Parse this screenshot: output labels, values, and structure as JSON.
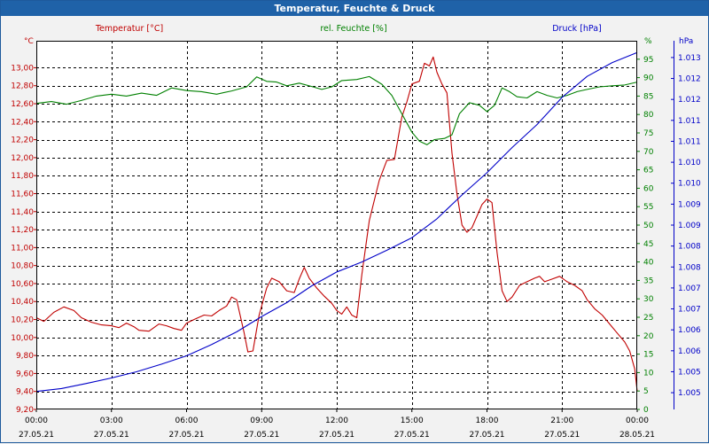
{
  "window": {
    "title": "Temperatur, Feuchte & Druck"
  },
  "colors": {
    "temperature": "#c00000",
    "humidity": "#008000",
    "pressure": "#0000c8",
    "grid": "#000000",
    "plot_bg": "#ffffff"
  },
  "chart_data": {
    "type": "line",
    "title": "Temperatur, Feuchte & Druck",
    "x_axis": {
      "range_hours": [
        0,
        24
      ],
      "ticks": [
        {
          "h": 0,
          "time": "00:00",
          "date": "27.05.21"
        },
        {
          "h": 3,
          "time": "03:00",
          "date": "27.05.21"
        },
        {
          "h": 6,
          "time": "06:00",
          "date": "27.05.21"
        },
        {
          "h": 9,
          "time": "09:00",
          "date": "27.05.21"
        },
        {
          "h": 12,
          "time": "12:00",
          "date": "27.05.21"
        },
        {
          "h": 15,
          "time": "15:00",
          "date": "27.05.21"
        },
        {
          "h": 18,
          "time": "18:00",
          "date": "27.05.21"
        },
        {
          "h": 21,
          "time": "21:00",
          "date": "27.05.21"
        },
        {
          "h": 24,
          "time": "00:00",
          "date": "28.05.21"
        }
      ]
    },
    "axes": {
      "temperature": {
        "label": "Temperatur [°C]",
        "unit": "°C",
        "ylim": [
          9.2,
          13.3
        ],
        "ticks": [
          9.2,
          9.4,
          9.6,
          9.8,
          10.0,
          10.2,
          10.4,
          10.6,
          10.8,
          11.0,
          11.2,
          11.4,
          11.6,
          11.8,
          12.0,
          12.2,
          12.4,
          12.6,
          12.8,
          13.0
        ],
        "tick_labels": [
          "9,20",
          "9,40",
          "9,60",
          "9,80",
          "10,00",
          "10,20",
          "10,40",
          "10,60",
          "10,80",
          "11,00",
          "11,20",
          "11,40",
          "11,60",
          "11,80",
          "12,00",
          "12,20",
          "12,40",
          "12,60",
          "12,80",
          "13,00"
        ]
      },
      "humidity": {
        "label": "rel. Feuchte [%]",
        "unit": "%",
        "ylim": [
          0,
          100
        ],
        "ticks": [
          0,
          5,
          10,
          15,
          20,
          25,
          30,
          35,
          40,
          45,
          50,
          55,
          60,
          65,
          70,
          75,
          80,
          85,
          90,
          95
        ],
        "tick_labels": [
          "0",
          "5",
          "10",
          "15",
          "20",
          "25",
          "30",
          "35",
          "40",
          "45",
          "50",
          "55",
          "60",
          "65",
          "70",
          "75",
          "80",
          "85",
          "90",
          "95"
        ]
      },
      "pressure": {
        "label": "Druck [hPa]",
        "unit": "hPa",
        "ylim": [
          1004.5,
          1013.3
        ],
        "ticks": [
          1004.9,
          1005.4,
          1005.9,
          1006.4,
          1006.9,
          1007.4,
          1007.9,
          1008.4,
          1008.9,
          1009.4,
          1009.9,
          1010.4,
          1010.9,
          1011.4,
          1011.9,
          1012.4,
          1012.9
        ],
        "tick_labels": [
          "1.005",
          "1.005",
          "1.006",
          "1.006",
          "1.007",
          "1.007",
          "1.008",
          "1.008",
          "1.009",
          "1.009",
          "1.010",
          "1.010",
          "1.011",
          "1.011",
          "1.012",
          "1.012",
          "1.013"
        ]
      }
    },
    "series": [
      {
        "name": "Temperatur [°C]",
        "axis": "temperature",
        "color": "#c00000",
        "points": [
          [
            0,
            10.22
          ],
          [
            0.3,
            10.18
          ],
          [
            0.7,
            10.28
          ],
          [
            1.1,
            10.34
          ],
          [
            1.5,
            10.3
          ],
          [
            1.8,
            10.22
          ],
          [
            2.2,
            10.17
          ],
          [
            2.6,
            10.14
          ],
          [
            3.0,
            10.13
          ],
          [
            3.3,
            10.11
          ],
          [
            3.6,
            10.16
          ],
          [
            3.9,
            10.12
          ],
          [
            4.1,
            10.08
          ],
          [
            4.5,
            10.07
          ],
          [
            4.9,
            10.15
          ],
          [
            5.2,
            10.13
          ],
          [
            5.5,
            10.1
          ],
          [
            5.8,
            10.08
          ],
          [
            6.0,
            10.16
          ],
          [
            6.3,
            10.2
          ],
          [
            6.7,
            10.25
          ],
          [
            7.0,
            10.24
          ],
          [
            7.3,
            10.3
          ],
          [
            7.6,
            10.35
          ],
          [
            7.8,
            10.45
          ],
          [
            8.0,
            10.42
          ],
          [
            8.3,
            10.05
          ],
          [
            8.45,
            9.84
          ],
          [
            8.65,
            9.85
          ],
          [
            8.9,
            10.25
          ],
          [
            9.2,
            10.55
          ],
          [
            9.4,
            10.66
          ],
          [
            9.7,
            10.62
          ],
          [
            10.0,
            10.52
          ],
          [
            10.3,
            10.5
          ],
          [
            10.5,
            10.65
          ],
          [
            10.7,
            10.78
          ],
          [
            10.9,
            10.66
          ],
          [
            11.2,
            10.55
          ],
          [
            11.5,
            10.46
          ],
          [
            11.8,
            10.38
          ],
          [
            12.0,
            10.3
          ],
          [
            12.2,
            10.26
          ],
          [
            12.4,
            10.34
          ],
          [
            12.6,
            10.25
          ],
          [
            12.8,
            10.22
          ],
          [
            13.0,
            10.7
          ],
          [
            13.3,
            11.3
          ],
          [
            13.7,
            11.75
          ],
          [
            14.0,
            11.97
          ],
          [
            14.3,
            11.98
          ],
          [
            14.6,
            12.45
          ],
          [
            14.8,
            12.62
          ],
          [
            15.0,
            12.82
          ],
          [
            15.3,
            12.85
          ],
          [
            15.5,
            13.05
          ],
          [
            15.7,
            13.02
          ],
          [
            15.85,
            13.12
          ],
          [
            16.0,
            12.95
          ],
          [
            16.2,
            12.82
          ],
          [
            16.4,
            12.72
          ],
          [
            16.6,
            12.05
          ],
          [
            16.8,
            11.6
          ],
          [
            17.0,
            11.25
          ],
          [
            17.2,
            11.17
          ],
          [
            17.4,
            11.22
          ],
          [
            17.6,
            11.35
          ],
          [
            17.8,
            11.48
          ],
          [
            18.0,
            11.54
          ],
          [
            18.2,
            11.5
          ],
          [
            18.4,
            10.95
          ],
          [
            18.6,
            10.52
          ],
          [
            18.8,
            10.4
          ],
          [
            19.0,
            10.45
          ],
          [
            19.3,
            10.58
          ],
          [
            19.6,
            10.62
          ],
          [
            19.9,
            10.66
          ],
          [
            20.1,
            10.68
          ],
          [
            20.3,
            10.62
          ],
          [
            20.6,
            10.65
          ],
          [
            20.9,
            10.68
          ],
          [
            21.2,
            10.62
          ],
          [
            21.5,
            10.58
          ],
          [
            21.8,
            10.52
          ],
          [
            22.0,
            10.42
          ],
          [
            22.3,
            10.32
          ],
          [
            22.6,
            10.25
          ],
          [
            22.9,
            10.15
          ],
          [
            23.2,
            10.05
          ],
          [
            23.5,
            9.95
          ],
          [
            23.7,
            9.85
          ],
          [
            23.9,
            9.65
          ],
          [
            24.0,
            9.4
          ]
        ]
      },
      {
        "name": "rel. Feuchte [%]",
        "axis": "humidity",
        "color": "#008000",
        "points": [
          [
            0,
            83
          ],
          [
            0.6,
            83.5
          ],
          [
            1.2,
            82.8
          ],
          [
            1.8,
            83.8
          ],
          [
            2.4,
            85
          ],
          [
            3.0,
            85.5
          ],
          [
            3.6,
            85
          ],
          [
            4.2,
            85.8
          ],
          [
            4.8,
            85.2
          ],
          [
            5.4,
            87.2
          ],
          [
            6.0,
            86.5
          ],
          [
            6.6,
            86.2
          ],
          [
            7.2,
            85.5
          ],
          [
            7.8,
            86.4
          ],
          [
            8.4,
            87.5
          ],
          [
            8.8,
            90.2
          ],
          [
            9.2,
            89
          ],
          [
            9.6,
            88.8
          ],
          [
            10.0,
            87.8
          ],
          [
            10.5,
            88.5
          ],
          [
            11.0,
            87.6
          ],
          [
            11.4,
            86.8
          ],
          [
            11.8,
            87.5
          ],
          [
            12.2,
            89.2
          ],
          [
            12.8,
            89.5
          ],
          [
            13.3,
            90.3
          ],
          [
            13.8,
            88.2
          ],
          [
            14.2,
            85.2
          ],
          [
            14.6,
            80.2
          ],
          [
            15.0,
            75.2
          ],
          [
            15.3,
            72.8
          ],
          [
            15.6,
            71.8
          ],
          [
            15.9,
            73.2
          ],
          [
            16.3,
            73.5
          ],
          [
            16.6,
            74.5
          ],
          [
            16.9,
            80.2
          ],
          [
            17.3,
            83.2
          ],
          [
            17.7,
            82.5
          ],
          [
            18.0,
            80.8
          ],
          [
            18.3,
            82.5
          ],
          [
            18.6,
            87.2
          ],
          [
            18.9,
            86.2
          ],
          [
            19.2,
            84.8
          ],
          [
            19.6,
            84.5
          ],
          [
            20.0,
            86.2
          ],
          [
            20.4,
            85.2
          ],
          [
            20.8,
            84.5
          ],
          [
            21.2,
            85.2
          ],
          [
            21.6,
            86.2
          ],
          [
            22.0,
            86.8
          ],
          [
            22.5,
            87.5
          ],
          [
            23.0,
            87.8
          ],
          [
            23.5,
            88
          ],
          [
            24.0,
            88.8
          ]
        ]
      },
      {
        "name": "Druck [hPa]",
        "axis": "pressure",
        "color": "#0000c8",
        "points": [
          [
            0,
            1004.93
          ],
          [
            1.0,
            1005.0
          ],
          [
            2.0,
            1005.12
          ],
          [
            3.0,
            1005.25
          ],
          [
            4.0,
            1005.4
          ],
          [
            5.0,
            1005.58
          ],
          [
            6.0,
            1005.78
          ],
          [
            7.0,
            1006.05
          ],
          [
            8.0,
            1006.35
          ],
          [
            9.0,
            1006.72
          ],
          [
            10.0,
            1007.05
          ],
          [
            11.0,
            1007.45
          ],
          [
            12.0,
            1007.78
          ],
          [
            13.0,
            1008.02
          ],
          [
            14.0,
            1008.3
          ],
          [
            15.0,
            1008.6
          ],
          [
            16.0,
            1009.05
          ],
          [
            17.0,
            1009.62
          ],
          [
            18.0,
            1010.15
          ],
          [
            19.0,
            1010.75
          ],
          [
            20.0,
            1011.3
          ],
          [
            21.0,
            1011.95
          ],
          [
            22.0,
            1012.45
          ],
          [
            23.0,
            1012.78
          ],
          [
            24.0,
            1013.02
          ]
        ]
      }
    ]
  }
}
